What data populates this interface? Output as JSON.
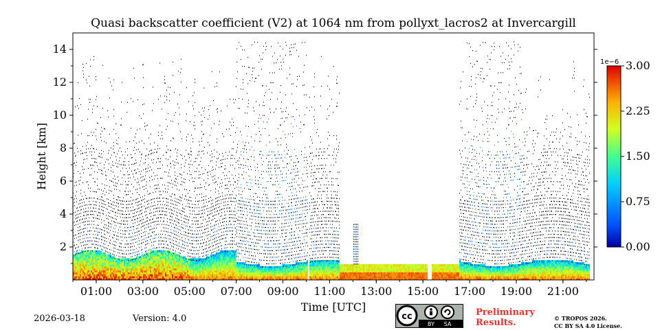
{
  "chart_data": {
    "type": "heatmap",
    "title": "Quasi backscatter coefficient (V2) at 1064 nm from pollyxt_lacros2 at Invercargill",
    "xlabel": "Time [UTC]",
    "ylabel": "Height [km]",
    "x_unit": "hours UTC",
    "xlim": [
      0.0,
      22.33
    ],
    "ylim": [
      0.0,
      15.0
    ],
    "x_ticks": [
      1,
      3,
      5,
      7,
      9,
      11,
      13,
      15,
      17,
      19,
      21
    ],
    "x_tick_labels": [
      "01:00",
      "03:00",
      "05:00",
      "07:00",
      "09:00",
      "11:00",
      "13:00",
      "15:00",
      "17:00",
      "19:00",
      "21:00"
    ],
    "y_ticks": [
      2,
      4,
      6,
      8,
      10,
      12,
      14
    ],
    "y_tick_labels": [
      "2",
      "4",
      "6",
      "8",
      "10",
      "12",
      "14"
    ],
    "colorbar": {
      "min": 0.0,
      "max": 3.0,
      "scale_label": "1e−6",
      "ticks": [
        0.0,
        0.75,
        1.5,
        2.25,
        3.0
      ],
      "tick_labels": [
        "0.00",
        "0.75",
        "1.50",
        "2.25",
        "3.00"
      ],
      "colormap": "jet"
    },
    "data_gaps_hours": [
      [
        10.05,
        10.1
      ],
      [
        15.2,
        15.35
      ],
      [
        22.15,
        22.3
      ]
    ],
    "high_cloud_periods_hours": [
      [
        7.0,
        10.0
      ],
      [
        16.8,
        19.3
      ]
    ],
    "boundary_layer_top_km": 1.8
  },
  "footer": {
    "date": "2026-03-18",
    "version": "Version: 4.0",
    "preliminary_line1": "Preliminary",
    "preliminary_line2": "Results.",
    "license_line1": "© TROPOS 2026.",
    "license_line2": "CC BY SA 4.0 License.",
    "cc_badge_labels": [
      "BY",
      "SA"
    ]
  }
}
